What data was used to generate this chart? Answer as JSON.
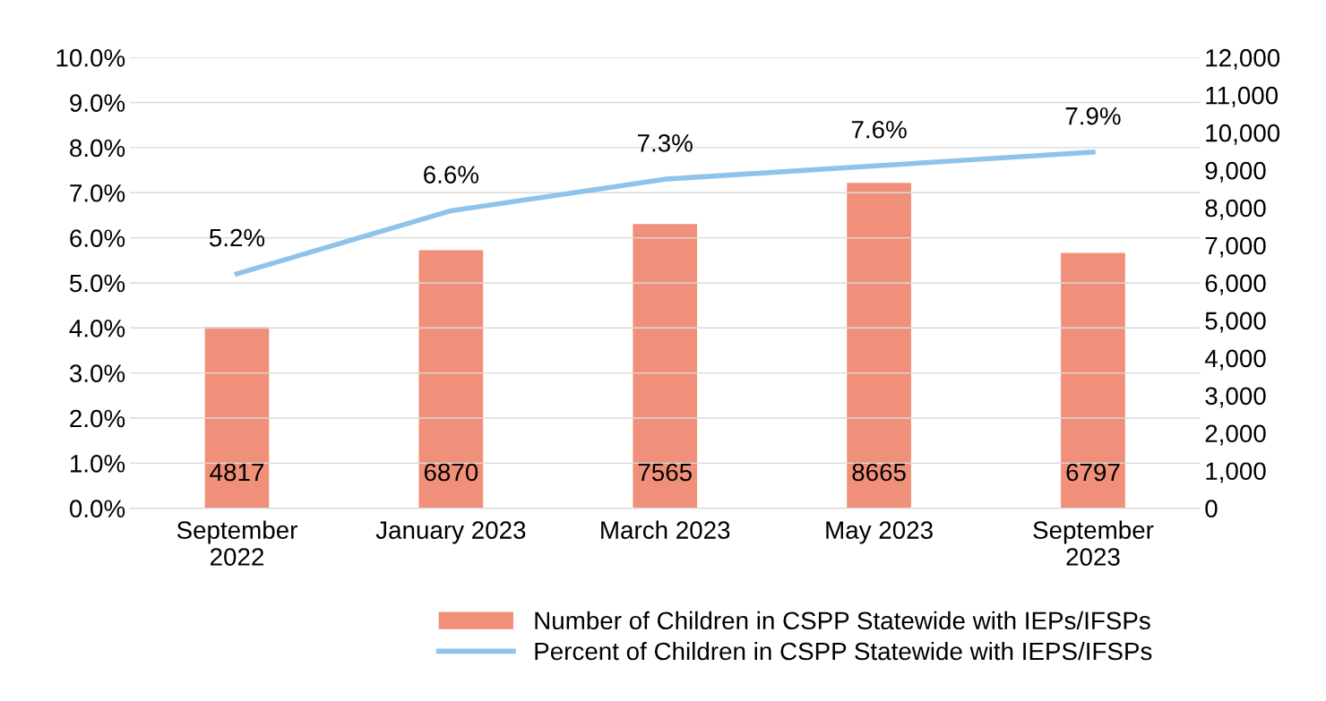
{
  "chart_data": {
    "type": "bar",
    "categories": [
      "September\n2022",
      "January 2023",
      "March 2023",
      "May 2023",
      "September\n2023"
    ],
    "series": [
      {
        "name": "Number of Children in CSPP Statewide with IEPs/IFSPs",
        "axis": "y2",
        "color": "#f0907a",
        "values": [
          4817,
          6870,
          7565,
          8665,
          6797
        ],
        "value_labels": [
          "4817",
          "6870",
          "7565",
          "8665",
          "6797"
        ]
      },
      {
        "name": "Percent of Children in CSPP Statewide with IEPS/IFSPs",
        "type": "line",
        "axis": "y",
        "color": "#8fc3ea",
        "values": [
          5.2,
          6.6,
          7.3,
          7.6,
          7.9
        ],
        "value_labels": [
          "5.2%",
          "6.6%",
          "7.3%",
          "7.6%",
          "7.9%"
        ]
      }
    ],
    "ylim": [
      0,
      10
    ],
    "yticks": [
      {
        "value": 0,
        "label": "0.0%"
      },
      {
        "value": 1,
        "label": "1.0%"
      },
      {
        "value": 2,
        "label": "2.0%"
      },
      {
        "value": 3,
        "label": "3.0%"
      },
      {
        "value": 4,
        "label": "4.0%"
      },
      {
        "value": 5,
        "label": "5.0%"
      },
      {
        "value": 6,
        "label": "6.0%"
      },
      {
        "value": 7,
        "label": "7.0%"
      },
      {
        "value": 8,
        "label": "8.0%"
      },
      {
        "value": 9,
        "label": "9.0%"
      },
      {
        "value": 10,
        "label": "10.0%"
      }
    ],
    "y2lim": [
      0,
      12000
    ],
    "y2ticks": [
      0,
      {
        "value": 1000,
        "label": "1,000"
      },
      {
        "value": 2000,
        "label": "2,000"
      },
      {
        "value": 3000,
        "label": "3,000"
      },
      {
        "value": 4000,
        "label": "4,000"
      },
      {
        "value": 5000,
        "label": "5,000"
      },
      {
        "value": 6000,
        "label": "6,000"
      },
      {
        "value": 7000,
        "label": "7,000"
      },
      {
        "value": 8000,
        "label": "8,000"
      },
      {
        "value": 9000,
        "label": "9,000"
      },
      {
        "value": 10000,
        "label": "10,000"
      },
      {
        "value": 11000,
        "label": "11,000"
      },
      {
        "value": 12000,
        "label": "12,000"
      }
    ],
    "grid": "y",
    "legend": "bottom",
    "line_style": "solid",
    "marker": "none"
  }
}
